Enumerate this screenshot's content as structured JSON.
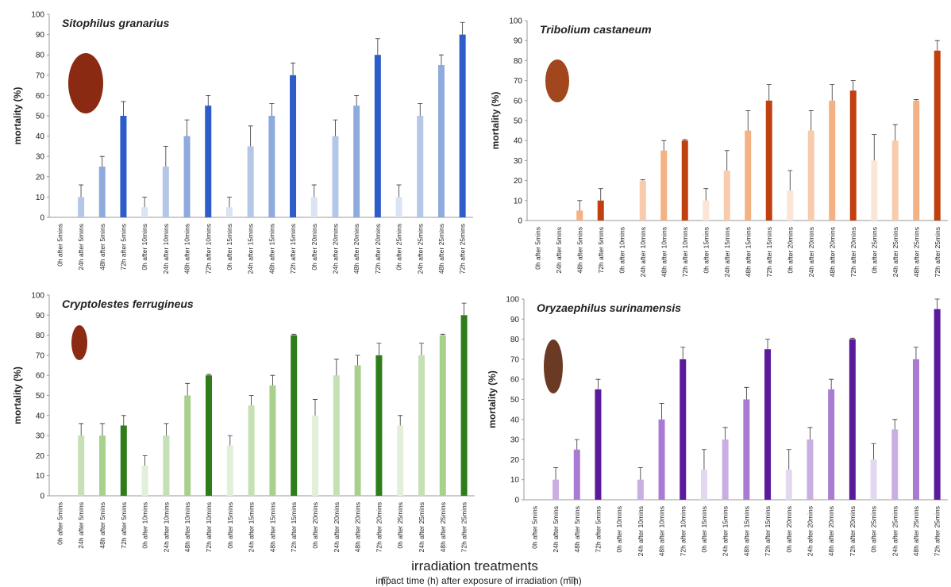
{
  "figure": {
    "x_label": "irradiation treatments",
    "x_sublabel": "impact time (h) after exposure of irradiation (min)"
  },
  "chart_data": [
    {
      "type": "bar",
      "title": "Sitophilus granarius",
      "y_label": "mortality (%)",
      "categories": [
        "0h after 5mins",
        "24h after 5mins",
        "48h after 5mins",
        "72h after 5mins",
        "0h after 10mins",
        "24h after 10mins",
        "48h after 10mins",
        "72h after 10mins",
        "0h after 15mins",
        "24h after 15mins",
        "48h after 15mins",
        "72h after 15mins",
        "0h after 20mins",
        "24h after 20mins",
        "48h after 20mins",
        "72h after 20mins",
        "0h after 25mins",
        "24h after 25mins",
        "48h after 25mins",
        "72h after 25mins"
      ],
      "values": [
        0,
        10,
        25,
        50,
        5,
        25,
        40,
        55,
        5,
        35,
        50,
        70,
        10,
        40,
        55,
        80,
        10,
        50,
        75,
        90
      ],
      "errors": [
        null,
        6,
        5,
        7,
        5,
        10,
        8,
        5,
        5,
        10,
        6,
        6,
        6,
        8,
        5,
        8,
        6,
        6,
        5,
        6
      ],
      "colors": [
        "#dbe4f3",
        "#b4c7e7",
        "#8faadc",
        "#2e5cc8",
        "#dbe4f3",
        "#b4c7e7",
        "#8faadc",
        "#2e5cc8",
        "#dbe4f3",
        "#b4c7e7",
        "#8faadc",
        "#2e5cc8",
        "#dbe4f3",
        "#b4c7e7",
        "#8faadc",
        "#2e5cc8",
        "#dbe4f3",
        "#b4c7e7",
        "#8faadc",
        "#2e5cc8"
      ],
      "ylim": [
        0,
        100
      ],
      "yticks": [
        0,
        10,
        20,
        30,
        40,
        50,
        60,
        70,
        80,
        90,
        100
      ]
    },
    {
      "type": "bar",
      "title": "Tribolium castaneum",
      "y_label": "mortality (%)",
      "categories": [
        "0h after 5mins",
        "24h after 5mins",
        "48h after 5mins",
        "72h after 5mins",
        "0h after 10mins",
        "24h after 10mins",
        "48h after 10mins",
        "72h after 10mins",
        "0h after 15mins",
        "24h after 15mins",
        "48h after 15mins",
        "72h after 15mins",
        "0h after 20mins",
        "24h after 20mins",
        "48h after 20mins",
        "72h after 20mins",
        "0h after 25mins",
        "24h after 25mins",
        "48h after 25mins",
        "72h after 25mins"
      ],
      "values": [
        0,
        0,
        5,
        10,
        0,
        20,
        35,
        40,
        10,
        25,
        45,
        60,
        15,
        45,
        60,
        65,
        30,
        40,
        60,
        85
      ],
      "errors": [
        null,
        null,
        5,
        6,
        null,
        0.5,
        5,
        0.5,
        6,
        10,
        10,
        8,
        10,
        10,
        8,
        5,
        13,
        8,
        0.5,
        5
      ],
      "colors": [
        "#fbe5d6",
        "#f8cbad",
        "#f4b183",
        "#c0400f",
        "#fbe5d6",
        "#f8cbad",
        "#f4b183",
        "#c0400f",
        "#fbe5d6",
        "#f8cbad",
        "#f4b183",
        "#c0400f",
        "#fbe5d6",
        "#f8cbad",
        "#f4b183",
        "#c0400f",
        "#fbe5d6",
        "#f8cbad",
        "#f4b183",
        "#c0400f"
      ],
      "ylim": [
        0,
        100
      ],
      "yticks": [
        0,
        10,
        20,
        30,
        40,
        50,
        60,
        70,
        80,
        90,
        100
      ]
    },
    {
      "type": "bar",
      "title": "Cryptolestes ferrugineus",
      "y_label": "mortality (%)",
      "categories": [
        "0h after 5mins",
        "24h after 5mins",
        "48h after 5mins",
        "72h after 5mins",
        "0h after 10mins",
        "24h after 10mins",
        "48h after 10mins",
        "72h after 10mins",
        "0h after 15mins",
        "24h after 15mins",
        "48h after 15mins",
        "72h after 15mins",
        "0h after 20mins",
        "24h after 20mins",
        "48h after 20mins",
        "72h after 20mins",
        "0h after 25mins",
        "24h after 25mins",
        "48h after 25mins",
        "72h after 25mins"
      ],
      "values": [
        0,
        30,
        30,
        35,
        15,
        30,
        50,
        60,
        25,
        45,
        55,
        80,
        40,
        60,
        65,
        70,
        35,
        70,
        80,
        90
      ],
      "errors": [
        null,
        6,
        6,
        5,
        5,
        6,
        6,
        0.5,
        5,
        5,
        5,
        0.5,
        8,
        8,
        5,
        6,
        5,
        6,
        0.5,
        6
      ],
      "colors": [
        "#e2efd9",
        "#c5e0b4",
        "#a9d18e",
        "#2e7d1a",
        "#e2efd9",
        "#c5e0b4",
        "#a9d18e",
        "#2e7d1a",
        "#e2efd9",
        "#c5e0b4",
        "#a9d18e",
        "#2e7d1a",
        "#e2efd9",
        "#c5e0b4",
        "#a9d18e",
        "#2e7d1a",
        "#e2efd9",
        "#c5e0b4",
        "#a9d18e",
        "#2e7d1a"
      ],
      "ylim": [
        0,
        100
      ],
      "yticks": [
        0,
        10,
        20,
        30,
        40,
        50,
        60,
        70,
        80,
        90,
        100
      ]
    },
    {
      "type": "bar",
      "title": "Oryzaephilus surinamensis",
      "y_label": "mortality (%)",
      "categories": [
        "0h after 5mins",
        "24h after 5mins",
        "48h after 5mins",
        "72h after 5mins",
        "0h after 10mins",
        "24h after 10mins",
        "48h after 10mins",
        "72h after 10mins",
        "0h after 15mins",
        "24h after 15mins",
        "48h after 15mins",
        "72h after 15mins",
        "0h after 20mins",
        "24h after 20mins",
        "48h after 20mins",
        "72h after 20mins",
        "0h after 25mins",
        "24h after 25mins",
        "48h after 25mins",
        "72h after 25mins"
      ],
      "values": [
        0,
        10,
        25,
        55,
        0,
        10,
        40,
        70,
        15,
        30,
        50,
        75,
        15,
        30,
        55,
        80,
        20,
        35,
        70,
        95
      ],
      "errors": [
        null,
        6,
        5,
        5,
        null,
        6,
        8,
        6,
        10,
        6,
        6,
        5,
        10,
        6,
        5,
        0.5,
        8,
        5,
        6,
        5
      ],
      "colors": [
        "#e4d7f0",
        "#c9aee2",
        "#a97bd2",
        "#5b1a9c",
        "#e4d7f0",
        "#c9aee2",
        "#a97bd2",
        "#5b1a9c",
        "#e4d7f0",
        "#c9aee2",
        "#a97bd2",
        "#5b1a9c",
        "#e4d7f0",
        "#c9aee2",
        "#a97bd2",
        "#5b1a9c",
        "#e4d7f0",
        "#c9aee2",
        "#a97bd2",
        "#5b1a9c"
      ],
      "ylim": [
        0,
        100
      ],
      "yticks": [
        0,
        10,
        20,
        30,
        40,
        50,
        60,
        70,
        80,
        90,
        100
      ]
    }
  ]
}
